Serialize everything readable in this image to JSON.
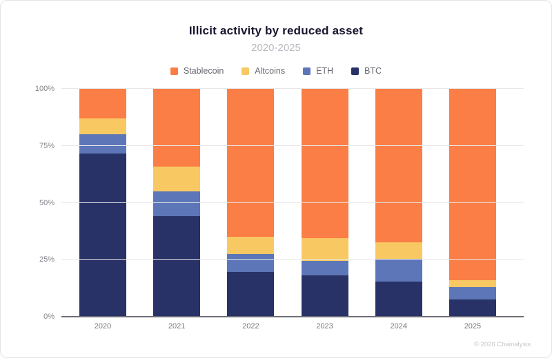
{
  "header": {
    "title": "Illicit activity by reduced asset",
    "subtitle": "2020-2025"
  },
  "legend": [
    {
      "label": "Stablecoin",
      "color": "#fa7e45"
    },
    {
      "label": "Altcoins",
      "color": "#f8c963"
    },
    {
      "label": "ETH",
      "color": "#5c76b8"
    },
    {
      "label": "BTC",
      "color": "#283266"
    }
  ],
  "chart_data": {
    "type": "bar",
    "stacked": true,
    "title": "Illicit activity by reduced asset",
    "subtitle": "2020-2025",
    "categories": [
      "2020",
      "2021",
      "2022",
      "2023",
      "2024",
      "2025"
    ],
    "series": [
      {
        "name": "BTC",
        "color": "#283266",
        "values": [
          71.5,
          44.0,
          19.5,
          18.0,
          15.5,
          7.5
        ]
      },
      {
        "name": "ETH",
        "color": "#5c76b8",
        "values": [
          8.5,
          11.0,
          8.0,
          6.5,
          9.5,
          5.5
        ]
      },
      {
        "name": "Altcoins",
        "color": "#f8c963",
        "values": [
          7.0,
          11.0,
          7.5,
          10.0,
          7.5,
          3.0
        ]
      },
      {
        "name": "Stablecoin",
        "color": "#fa7e45",
        "values": [
          13.0,
          34.0,
          65.0,
          65.5,
          67.5,
          84.0
        ]
      }
    ],
    "xlabel": "",
    "ylabel": "",
    "ylim": [
      0,
      100
    ],
    "y_ticks": [
      "0%",
      "25%",
      "50%",
      "75%",
      "100%"
    ],
    "grid": true,
    "legend_position": "top"
  },
  "footer": {
    "credit": "© 2026 Chainalysis"
  },
  "colors": {
    "gridline": "#e8e8eb",
    "axis_line": "#6e6e77",
    "title_text": "#16152e",
    "subtitle_text": "#b9b9c1",
    "axis_text": "#82828b",
    "legend_text": "#66666f",
    "card_border": "#e4e4e8",
    "footer_text": "#c6c6cd"
  }
}
